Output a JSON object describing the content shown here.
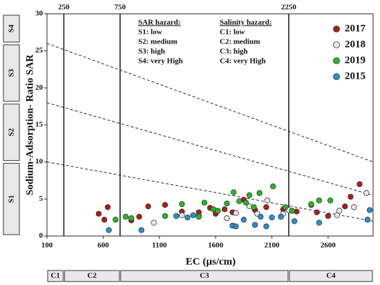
{
  "chart_data": {
    "type": "scatter",
    "x_label": "EC (µs/cm)",
    "y_label": "Sodium-Adsorption- Ratio SAR",
    "xlim": [
      100,
      3000
    ],
    "xticks": [
      100,
      600,
      1100,
      1600,
      2100,
      2600
    ],
    "ylim": [
      0,
      30
    ],
    "yticks": [
      0,
      5,
      10,
      15,
      20,
      25,
      30
    ],
    "class_lines": [
      250,
      750,
      2250
    ],
    "boundary_lines": [
      {
        "x": [
          100,
          3000
        ],
        "y": [
          10,
          2
        ]
      },
      {
        "x": [
          100,
          3000
        ],
        "y": [
          18,
          5.5
        ]
      },
      {
        "x": [
          100,
          3000
        ],
        "y": [
          26,
          10
        ]
      }
    ],
    "sar_classes": [
      "S1",
      "S2",
      "S3",
      "S4"
    ],
    "salinity_classes": [
      "C1",
      "C2",
      "C3",
      "C4"
    ],
    "sar_hazard": {
      "title": "SAR hazard:",
      "items": [
        "S1: low",
        "S2: medium",
        "S3: high",
        "S4: very High"
      ]
    },
    "salinity_hazard": {
      "title": "Salinity hazard:",
      "items": [
        "C1: low",
        "C2: medium",
        "C3: high",
        "C4: very High"
      ]
    },
    "legend": "upper right",
    "series": [
      {
        "name": "2017",
        "color": "#b01c1c",
        "x": [
          560,
          610,
          640,
          850,
          920,
          1000,
          1150,
          1300,
          1450,
          1550,
          1600,
          1680,
          1750,
          1850,
          1950,
          2050,
          2200,
          2320,
          2450,
          2500,
          2600,
          2750,
          2800,
          2880
        ],
        "values": [
          3.0,
          2.2,
          3.9,
          2.1,
          2.6,
          4.0,
          4.2,
          3.3,
          3.2,
          3.8,
          3.0,
          3.6,
          3.2,
          4.9,
          3.5,
          3.9,
          3.6,
          3.3,
          4.2,
          3.2,
          2.7,
          4.0,
          5.3,
          7.0
        ]
      },
      {
        "name": "2018",
        "color": "#e6e6e6",
        "x": [
          1050,
          1300,
          1450,
          1700,
          1780,
          1900,
          1970,
          2060,
          2200,
          2250,
          2680,
          2700,
          2830,
          2940
        ],
        "values": [
          1.8,
          2.8,
          2.7,
          2.4,
          3.1,
          4.0,
          3.0,
          4.8,
          3.0,
          3.5,
          2.8,
          3.4,
          3.9,
          5.8
        ]
      },
      {
        "name": "2019",
        "color": "#22bb22",
        "x": [
          710,
          800,
          850,
          1150,
          1300,
          1450,
          1500,
          1580,
          1620,
          1700,
          1760,
          1810,
          1870,
          1900,
          1940,
          1990,
          2110,
          2220,
          2280,
          2450,
          2520,
          2620
        ],
        "values": [
          2.2,
          2.6,
          2.4,
          2.7,
          4.3,
          2.6,
          4.5,
          3.6,
          3.4,
          4.4,
          5.9,
          4.7,
          4.5,
          5.5,
          3.9,
          5.8,
          6.7,
          3.9,
          3.4,
          4.3,
          4.8,
          4.8
        ]
      },
      {
        "name": "2015",
        "color": "#2a8fd0",
        "x": [
          650,
          940,
          1250,
          1350,
          1400,
          1750,
          1780,
          1850,
          1950,
          2000,
          2050,
          2100,
          2180,
          2300,
          2520,
          2950,
          2970
        ],
        "values": [
          0.8,
          0.8,
          2.7,
          2.5,
          2.8,
          1.4,
          1.3,
          2.2,
          1.5,
          2.6,
          1.3,
          2.5,
          2.6,
          2.0,
          1.8,
          2.2,
          3.5
        ]
      }
    ]
  }
}
